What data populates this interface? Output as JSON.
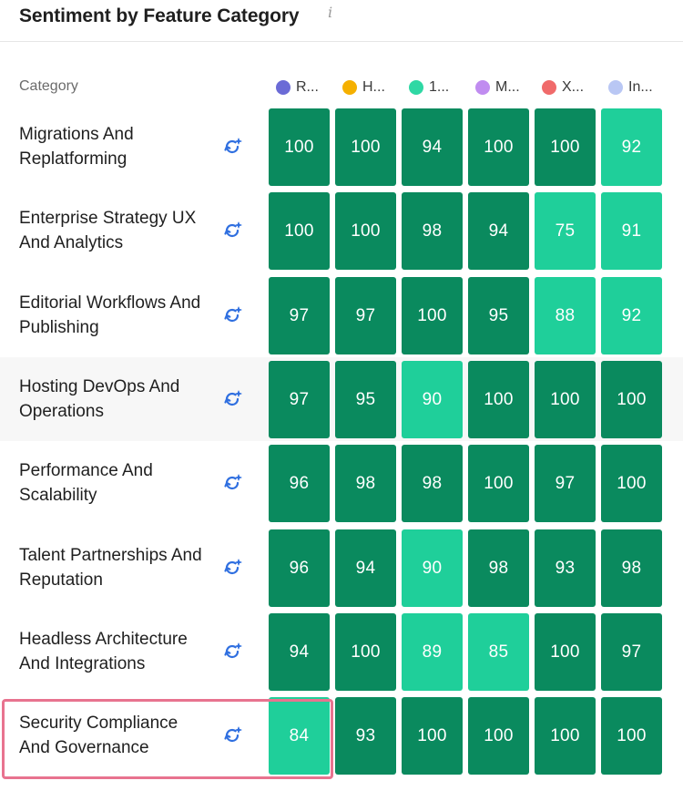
{
  "header": {
    "title": "Sentiment by Feature Category",
    "info_icon": "info-icon"
  },
  "table": {
    "category_header": "Category",
    "columns": [
      {
        "label": "R...",
        "color": "#6b6bd6"
      },
      {
        "label": "H...",
        "color": "#f5b000"
      },
      {
        "label": "1...",
        "color": "#2fd8a4"
      },
      {
        "label": "M...",
        "color": "#c08cf0"
      },
      {
        "label": "X...",
        "color": "#f06a6a"
      },
      {
        "label": "In...",
        "color": "#b9c7f4"
      }
    ],
    "colors": {
      "high": "#0a8a5e",
      "mid": "#1fcf9a",
      "highlight_border": "#e8738f",
      "refresh_icon": "#2f6fe0"
    },
    "rows": [
      {
        "label_line1": "Migrations And",
        "label_line2": "Replatforming",
        "values": [
          100,
          100,
          94,
          100,
          100,
          92
        ],
        "shade": [
          "dark",
          "dark",
          "dark",
          "dark",
          "dark",
          "light"
        ]
      },
      {
        "label_line1": "Enterprise Strategy UX",
        "label_line2": "And Analytics",
        "values": [
          100,
          100,
          98,
          94,
          75,
          91
        ],
        "shade": [
          "dark",
          "dark",
          "dark",
          "dark",
          "light",
          "light"
        ]
      },
      {
        "label_line1": "Editorial Workflows And",
        "label_line2": "Publishing",
        "values": [
          97,
          97,
          100,
          95,
          88,
          92
        ],
        "shade": [
          "dark",
          "dark",
          "dark",
          "dark",
          "light",
          "light"
        ]
      },
      {
        "label_line1": "Hosting DevOps And",
        "label_line2": "Operations",
        "values": [
          97,
          95,
          90,
          100,
          100,
          100
        ],
        "shade": [
          "dark",
          "dark",
          "light",
          "dark",
          "dark",
          "dark"
        ]
      },
      {
        "label_line1": "Performance And",
        "label_line2": "Scalability",
        "values": [
          96,
          98,
          98,
          100,
          97,
          100
        ],
        "shade": [
          "dark",
          "dark",
          "dark",
          "dark",
          "dark",
          "dark"
        ]
      },
      {
        "label_line1": "Talent Partnerships And",
        "label_line2": "Reputation",
        "values": [
          96,
          94,
          90,
          98,
          93,
          98
        ],
        "shade": [
          "dark",
          "dark",
          "light",
          "dark",
          "dark",
          "dark"
        ]
      },
      {
        "label_line1": "Headless Architecture",
        "label_line2": "And Integrations",
        "values": [
          94,
          100,
          89,
          85,
          100,
          97
        ],
        "shade": [
          "dark",
          "dark",
          "light",
          "light",
          "dark",
          "dark"
        ]
      },
      {
        "label_line1": "Security Compliance",
        "label_line2": "And Governance",
        "values": [
          84,
          93,
          100,
          100,
          100,
          100
        ],
        "shade": [
          "light",
          "dark",
          "dark",
          "dark",
          "dark",
          "dark"
        ]
      }
    ]
  }
}
